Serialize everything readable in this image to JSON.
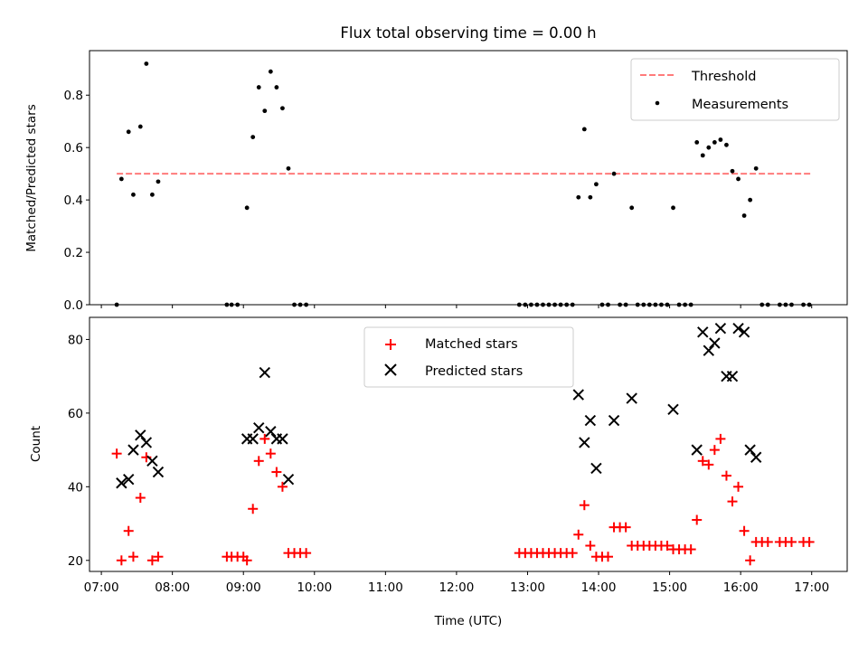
{
  "chart_data": [
    {
      "type": "scatter",
      "title": "Flux total observing time = 0.00 h",
      "ylabel": "Matched/Predicted stars",
      "xlabel": "",
      "xlim": [
        "06:50",
        "17:30"
      ],
      "ylim": [
        0,
        0.97
      ],
      "yticks": [
        0.0,
        0.2,
        0.4,
        0.6,
        0.8
      ],
      "ytick_labels": [
        "0.0",
        "0.2",
        "0.4",
        "0.6",
        "0.8"
      ],
      "legend_position": "top-right",
      "threshold": {
        "name": "Threshold",
        "y": 0.5,
        "x": [
          "07:13",
          "17:00"
        ],
        "color": "#ff7b7b"
      },
      "series": [
        {
          "name": "Measurements",
          "color": "#000000",
          "points": [
            [
              "07:13",
              0.0
            ],
            [
              "07:17",
              0.48
            ],
            [
              "07:23",
              0.66
            ],
            [
              "07:27",
              0.42
            ],
            [
              "07:33",
              0.68
            ],
            [
              "07:38",
              0.92
            ],
            [
              "07:43",
              0.42
            ],
            [
              "07:48",
              0.47
            ],
            [
              "08:46",
              0.0
            ],
            [
              "08:50",
              0.0
            ],
            [
              "08:55",
              0.0
            ],
            [
              "09:03",
              0.37
            ],
            [
              "09:08",
              0.64
            ],
            [
              "09:13",
              0.83
            ],
            [
              "09:18",
              0.74
            ],
            [
              "09:23",
              0.89
            ],
            [
              "09:28",
              0.83
            ],
            [
              "09:33",
              0.75
            ],
            [
              "09:38",
              0.52
            ],
            [
              "09:43",
              0.0
            ],
            [
              "09:48",
              0.0
            ],
            [
              "09:53",
              0.0
            ],
            [
              "12:53",
              0.0
            ],
            [
              "12:58",
              0.0
            ],
            [
              "13:03",
              0.0
            ],
            [
              "13:08",
              0.0
            ],
            [
              "13:13",
              0.0
            ],
            [
              "13:18",
              0.0
            ],
            [
              "13:23",
              0.0
            ],
            [
              "13:28",
              0.0
            ],
            [
              "13:33",
              0.0
            ],
            [
              "13:38",
              0.0
            ],
            [
              "13:43",
              0.41
            ],
            [
              "13:48",
              0.67
            ],
            [
              "13:53",
              0.41
            ],
            [
              "13:58",
              0.46
            ],
            [
              "14:03",
              0.0
            ],
            [
              "14:08",
              0.0
            ],
            [
              "14:13",
              0.5
            ],
            [
              "14:18",
              0.0
            ],
            [
              "14:23",
              0.0
            ],
            [
              "14:28",
              0.37
            ],
            [
              "14:33",
              0.0
            ],
            [
              "14:38",
              0.0
            ],
            [
              "14:43",
              0.0
            ],
            [
              "14:48",
              0.0
            ],
            [
              "14:53",
              0.0
            ],
            [
              "14:58",
              0.0
            ],
            [
              "15:03",
              0.37
            ],
            [
              "15:08",
              0.0
            ],
            [
              "15:13",
              0.0
            ],
            [
              "15:18",
              0.0
            ],
            [
              "15:23",
              0.62
            ],
            [
              "15:28",
              0.57
            ],
            [
              "15:33",
              0.6
            ],
            [
              "15:38",
              0.62
            ],
            [
              "15:43",
              0.63
            ],
            [
              "15:48",
              0.61
            ],
            [
              "15:53",
              0.51
            ],
            [
              "15:58",
              0.48
            ],
            [
              "16:03",
              0.34
            ],
            [
              "16:08",
              0.4
            ],
            [
              "16:13",
              0.52
            ],
            [
              "16:18",
              0.0
            ],
            [
              "16:23",
              0.0
            ],
            [
              "16:33",
              0.0
            ],
            [
              "16:38",
              0.0
            ],
            [
              "16:43",
              0.0
            ],
            [
              "16:53",
              0.0
            ],
            [
              "16:58",
              0.0
            ]
          ]
        }
      ]
    },
    {
      "type": "scatter",
      "title": "",
      "ylabel": "Count",
      "xlabel": "Time (UTC)",
      "xlim": [
        "06:50",
        "17:30"
      ],
      "ylim": [
        17,
        86
      ],
      "yticks": [
        20,
        40,
        60,
        80
      ],
      "ytick_labels": [
        "20",
        "40",
        "60",
        "80"
      ],
      "xticks": [
        "07:00",
        "08:00",
        "09:00",
        "10:00",
        "11:00",
        "12:00",
        "13:00",
        "14:00",
        "15:00",
        "16:00",
        "17:00"
      ],
      "xtick_labels": [
        "07:00",
        "08:00",
        "09:00",
        "10:00",
        "11:00",
        "12:00",
        "13:00",
        "14:00",
        "15:00",
        "16:00",
        "17:00"
      ],
      "legend_position": "top-center",
      "series": [
        {
          "name": "Matched stars",
          "marker": "plus",
          "color": "#ff0000",
          "points": [
            [
              "07:13",
              49
            ],
            [
              "07:17",
              20
            ],
            [
              "07:23",
              28
            ],
            [
              "07:27",
              21
            ],
            [
              "07:33",
              37
            ],
            [
              "07:38",
              48
            ],
            [
              "07:43",
              20
            ],
            [
              "07:48",
              21
            ],
            [
              "08:46",
              21
            ],
            [
              "08:50",
              21
            ],
            [
              "08:55",
              21
            ],
            [
              "09:00",
              21
            ],
            [
              "09:03",
              20
            ],
            [
              "09:08",
              34
            ],
            [
              "09:13",
              47
            ],
            [
              "09:18",
              53
            ],
            [
              "09:23",
              49
            ],
            [
              "09:28",
              44
            ],
            [
              "09:33",
              40
            ],
            [
              "09:38",
              22
            ],
            [
              "09:43",
              22
            ],
            [
              "09:48",
              22
            ],
            [
              "09:53",
              22
            ],
            [
              "12:53",
              22
            ],
            [
              "12:58",
              22
            ],
            [
              "13:03",
              22
            ],
            [
              "13:08",
              22
            ],
            [
              "13:13",
              22
            ],
            [
              "13:18",
              22
            ],
            [
              "13:23",
              22
            ],
            [
              "13:28",
              22
            ],
            [
              "13:33",
              22
            ],
            [
              "13:38",
              22
            ],
            [
              "13:43",
              27
            ],
            [
              "13:48",
              35
            ],
            [
              "13:53",
              24
            ],
            [
              "13:58",
              21
            ],
            [
              "14:03",
              21
            ],
            [
              "14:08",
              21
            ],
            [
              "14:13",
              29
            ],
            [
              "14:18",
              29
            ],
            [
              "14:23",
              29
            ],
            [
              "14:28",
              24
            ],
            [
              "14:33",
              24
            ],
            [
              "14:38",
              24
            ],
            [
              "14:43",
              24
            ],
            [
              "14:48",
              24
            ],
            [
              "14:53",
              24
            ],
            [
              "14:58",
              24
            ],
            [
              "15:03",
              23
            ],
            [
              "15:08",
              23
            ],
            [
              "15:13",
              23
            ],
            [
              "15:18",
              23
            ],
            [
              "15:23",
              31
            ],
            [
              "15:28",
              47
            ],
            [
              "15:33",
              46
            ],
            [
              "15:38",
              50
            ],
            [
              "15:43",
              53
            ],
            [
              "15:48",
              43
            ],
            [
              "15:53",
              36
            ],
            [
              "15:58",
              40
            ],
            [
              "16:03",
              28
            ],
            [
              "16:08",
              20
            ],
            [
              "16:13",
              25
            ],
            [
              "16:18",
              25
            ],
            [
              "16:23",
              25
            ],
            [
              "16:33",
              25
            ],
            [
              "16:38",
              25
            ],
            [
              "16:43",
              25
            ],
            [
              "16:53",
              25
            ],
            [
              "16:58",
              25
            ]
          ]
        },
        {
          "name": "Predicted stars",
          "marker": "x",
          "color": "#000000",
          "points": [
            [
              "07:17",
              41
            ],
            [
              "07:23",
              42
            ],
            [
              "07:27",
              50
            ],
            [
              "07:33",
              54
            ],
            [
              "07:38",
              52
            ],
            [
              "07:43",
              47
            ],
            [
              "07:48",
              44
            ],
            [
              "09:03",
              53
            ],
            [
              "09:08",
              53
            ],
            [
              "09:13",
              56
            ],
            [
              "09:18",
              71
            ],
            [
              "09:23",
              55
            ],
            [
              "09:28",
              53
            ],
            [
              "09:33",
              53
            ],
            [
              "09:38",
              42
            ],
            [
              "13:43",
              65
            ],
            [
              "13:48",
              52
            ],
            [
              "13:53",
              58
            ],
            [
              "13:58",
              45
            ],
            [
              "14:13",
              58
            ],
            [
              "14:28",
              64
            ],
            [
              "15:03",
              61
            ],
            [
              "15:23",
              50
            ],
            [
              "15:28",
              82
            ],
            [
              "15:33",
              77
            ],
            [
              "15:38",
              79
            ],
            [
              "15:43",
              83
            ],
            [
              "15:48",
              70
            ],
            [
              "15:53",
              70
            ],
            [
              "15:58",
              83
            ],
            [
              "16:03",
              82
            ],
            [
              "16:08",
              50
            ],
            [
              "16:13",
              48
            ]
          ]
        }
      ]
    }
  ]
}
